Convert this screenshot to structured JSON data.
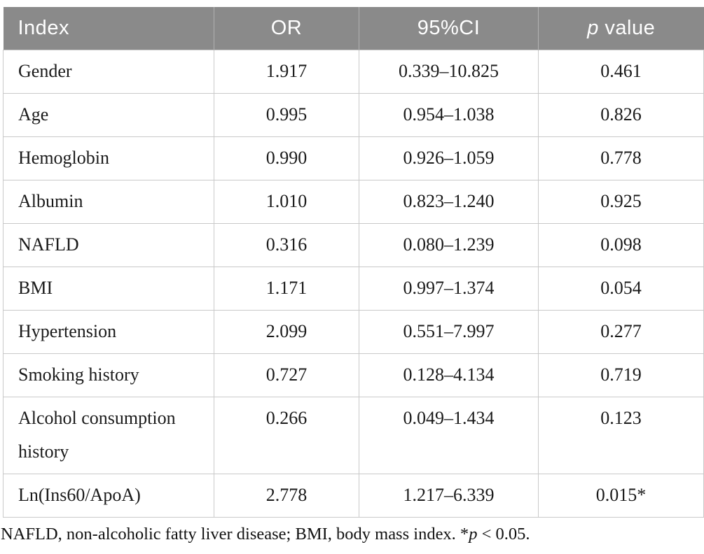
{
  "colors": {
    "header_bg": "#8a8a8a",
    "header_text": "#ffffff",
    "cell_border": "#c9c9c9",
    "body_text": "#1a1a1a"
  },
  "table": {
    "header": {
      "index": "Index",
      "or": "OR",
      "ci": "95%CI",
      "p_italic": "p",
      "p_rest": " value"
    },
    "rows": [
      {
        "index": "Gender",
        "or": "1.917",
        "ci": "0.339–10.825",
        "p": "0.461"
      },
      {
        "index": "Age",
        "or": "0.995",
        "ci": "0.954–1.038",
        "p": "0.826"
      },
      {
        "index": "Hemoglobin",
        "or": "0.990",
        "ci": "0.926–1.059",
        "p": "0.778"
      },
      {
        "index": "Albumin",
        "or": "1.010",
        "ci": "0.823–1.240",
        "p": "0.925"
      },
      {
        "index": "NAFLD",
        "or": "0.316",
        "ci": "0.080–1.239",
        "p": "0.098"
      },
      {
        "index": "BMI",
        "or": "1.171",
        "ci": "0.997–1.374",
        "p": "0.054"
      },
      {
        "index": "Hypertension",
        "or": "2.099",
        "ci": "0.551–7.997",
        "p": "0.277"
      },
      {
        "index": "Smoking history",
        "or": "0.727",
        "ci": "0.128–4.134",
        "p": "0.719"
      },
      {
        "index": "Alcohol consumption history",
        "or": "0.266",
        "ci": "0.049–1.434",
        "p": "0.123"
      },
      {
        "index": "Ln(Ins60/ApoA)",
        "or": "2.778",
        "ci": "1.217–6.339",
        "p": "0.015*"
      }
    ],
    "footnote": {
      "part1": "NAFLD, non-alcoholic fatty liver disease; BMI, body mass index. *",
      "p": "p",
      "part2": " < 0.05."
    }
  }
}
